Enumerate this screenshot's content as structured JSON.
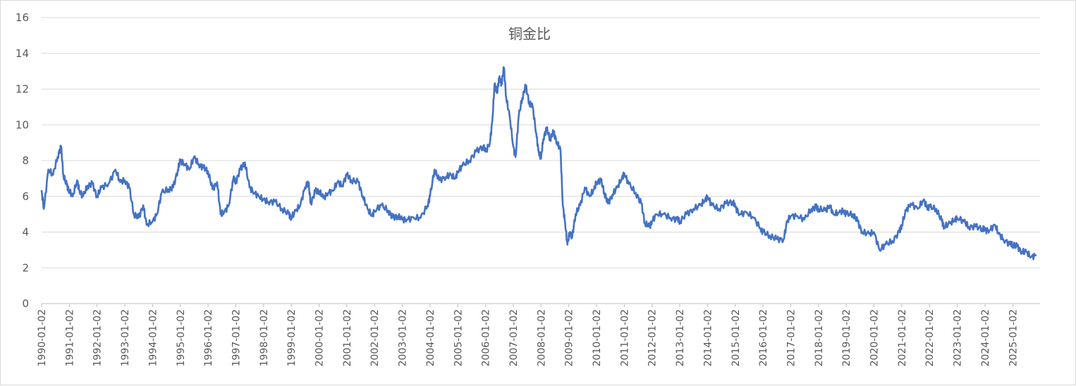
{
  "chart_data": {
    "type": "line",
    "title": "铜金比",
    "xlabel": "",
    "ylabel": "",
    "ylim": [
      0,
      16
    ],
    "yticks": [
      "0",
      "2",
      "4",
      "6",
      "8",
      "10",
      "12",
      "14",
      "16"
    ],
    "xticks": [
      "1990-01-02",
      "1991-01-02",
      "1992-01-02",
      "1993-01-02",
      "1994-01-02",
      "1995-01-02",
      "1996-01-02",
      "1997-01-02",
      "1998-01-02",
      "1999-01-02",
      "2000-01-02",
      "2001-01-02",
      "2002-01-02",
      "2003-01-02",
      "2004-01-02",
      "2005-01-02",
      "2006-01-02",
      "2007-01-02",
      "2008-01-02",
      "2009-01-02",
      "2010-01-02",
      "2011-01-02",
      "2012-01-02",
      "2013-01-02",
      "2014-01-02",
      "2015-01-02",
      "2016-01-02",
      "2017-01-02",
      "2018-01-02",
      "2019-01-02",
      "2020-01-02",
      "2021-01-02",
      "2022-01-02",
      "2023-01-02",
      "2024-01-02",
      "2025-01-02"
    ],
    "grid": true,
    "legend": "none",
    "series": [
      {
        "color": "#4472c4",
        "points": [
          [
            "1990-01-02",
            6.3
          ],
          [
            "1990-02-01",
            5.3
          ],
          [
            "1990-04-01",
            7.5
          ],
          [
            "1990-06-01",
            7.2
          ],
          [
            "1990-08-01",
            8.2
          ],
          [
            "1990-09-15",
            8.8
          ],
          [
            "1990-10-15",
            7.2
          ],
          [
            "1990-12-01",
            6.6
          ],
          [
            "1991-01-02",
            6.3
          ],
          [
            "1991-02-15",
            6.0
          ],
          [
            "1991-04-15",
            6.9
          ],
          [
            "1991-05-15",
            6.3
          ],
          [
            "1991-07-01",
            6.0
          ],
          [
            "1991-09-01",
            6.6
          ],
          [
            "1991-11-01",
            6.7
          ],
          [
            "1992-01-02",
            6.0
          ],
          [
            "1992-03-01",
            6.5
          ],
          [
            "1992-06-01",
            6.7
          ],
          [
            "1992-09-01",
            7.5
          ],
          [
            "1992-11-01",
            6.8
          ],
          [
            "1993-01-02",
            6.9
          ],
          [
            "1993-03-01",
            6.5
          ],
          [
            "1993-05-01",
            5.0
          ],
          [
            "1993-07-01",
            4.8
          ],
          [
            "1993-09-01",
            5.5
          ],
          [
            "1993-10-15",
            4.4
          ],
          [
            "1994-01-02",
            4.6
          ],
          [
            "1994-03-01",
            5.0
          ],
          [
            "1994-05-01",
            6.2
          ],
          [
            "1994-08-01",
            6.4
          ],
          [
            "1994-10-01",
            6.5
          ],
          [
            "1994-12-01",
            7.5
          ],
          [
            "1995-01-02",
            8.0
          ],
          [
            "1995-03-01",
            7.8
          ],
          [
            "1995-05-01",
            7.5
          ],
          [
            "1995-07-01",
            8.2
          ],
          [
            "1995-09-01",
            7.8
          ],
          [
            "1995-11-01",
            7.6
          ],
          [
            "1996-01-02",
            7.4
          ],
          [
            "1996-03-01",
            6.4
          ],
          [
            "1996-05-01",
            6.8
          ],
          [
            "1996-06-15",
            5.0
          ],
          [
            "1996-08-01",
            5.1
          ],
          [
            "1996-10-01",
            5.5
          ],
          [
            "1996-12-01",
            7.0
          ],
          [
            "1997-01-02",
            6.8
          ],
          [
            "1997-03-01",
            7.5
          ],
          [
            "1997-05-01",
            7.9
          ],
          [
            "1997-07-01",
            6.5
          ],
          [
            "1997-09-01",
            6.2
          ],
          [
            "1997-11-01",
            6.0
          ],
          [
            "1998-01-02",
            5.8
          ],
          [
            "1998-03-01",
            5.7
          ],
          [
            "1998-06-01",
            5.7
          ],
          [
            "1998-09-01",
            5.3
          ],
          [
            "1998-12-01",
            5.0
          ],
          [
            "1999-01-02",
            4.8
          ],
          [
            "1999-03-01",
            5.2
          ],
          [
            "1999-05-01",
            5.5
          ],
          [
            "1999-07-01",
            6.5
          ],
          [
            "1999-08-15",
            6.8
          ],
          [
            "1999-09-15",
            5.6
          ],
          [
            "1999-11-15",
            6.3
          ],
          [
            "2000-01-02",
            6.3
          ],
          [
            "2000-03-01",
            5.9
          ],
          [
            "2000-05-01",
            6.2
          ],
          [
            "2000-07-01",
            6.3
          ],
          [
            "2000-09-01",
            6.8
          ],
          [
            "2000-11-01",
            6.6
          ],
          [
            "2001-01-02",
            7.2
          ],
          [
            "2001-03-01",
            6.9
          ],
          [
            "2001-06-01",
            6.8
          ],
          [
            "2001-08-01",
            6.0
          ],
          [
            "2001-10-01",
            5.3
          ],
          [
            "2001-12-01",
            4.9
          ],
          [
            "2002-01-02",
            5.2
          ],
          [
            "2002-04-01",
            5.5
          ],
          [
            "2002-07-01",
            5.2
          ],
          [
            "2002-09-01",
            4.8
          ],
          [
            "2002-11-01",
            4.9
          ],
          [
            "2003-01-02",
            4.7
          ],
          [
            "2003-03-01",
            4.7
          ],
          [
            "2003-06-01",
            4.8
          ],
          [
            "2003-09-01",
            4.8
          ],
          [
            "2003-12-01",
            5.5
          ],
          [
            "2004-01-02",
            6.0
          ],
          [
            "2004-03-01",
            7.5
          ],
          [
            "2004-05-01",
            6.9
          ],
          [
            "2004-08-01",
            7.1
          ],
          [
            "2004-10-01",
            7.2
          ],
          [
            "2004-12-01",
            7.0
          ],
          [
            "2005-01-02",
            7.4
          ],
          [
            "2005-03-01",
            7.7
          ],
          [
            "2005-06-01",
            8.0
          ],
          [
            "2005-09-01",
            8.5
          ],
          [
            "2005-12-01",
            8.8
          ],
          [
            "2006-01-02",
            8.5
          ],
          [
            "2006-03-01",
            9.0
          ],
          [
            "2006-04-01",
            10.2
          ],
          [
            "2006-05-01",
            12.3
          ],
          [
            "2006-06-01",
            11.8
          ],
          [
            "2006-07-01",
            12.6
          ],
          [
            "2006-08-01",
            12.3
          ],
          [
            "2006-09-01",
            13.2
          ],
          [
            "2006-10-01",
            11.5
          ],
          [
            "2006-11-15",
            10.5
          ],
          [
            "2007-01-02",
            8.8
          ],
          [
            "2007-02-01",
            8.2
          ],
          [
            "2007-03-15",
            10.5
          ],
          [
            "2007-05-01",
            11.5
          ],
          [
            "2007-06-15",
            12.2
          ],
          [
            "2007-08-01",
            11.2
          ],
          [
            "2007-09-15",
            11.0
          ],
          [
            "2007-11-01",
            9.5
          ],
          [
            "2007-12-01",
            8.5
          ],
          [
            "2008-01-02",
            8.1
          ],
          [
            "2008-02-01",
            9.2
          ],
          [
            "2008-03-15",
            9.8
          ],
          [
            "2008-05-01",
            9.2
          ],
          [
            "2008-06-15",
            9.6
          ],
          [
            "2008-08-01",
            9.0
          ],
          [
            "2008-09-15",
            8.6
          ],
          [
            "2008-10-15",
            5.5
          ],
          [
            "2008-11-15",
            4.5
          ],
          [
            "2008-12-15",
            3.3
          ],
          [
            "2009-01-15",
            4.0
          ],
          [
            "2009-02-15",
            3.7
          ],
          [
            "2009-04-01",
            5.0
          ],
          [
            "2009-06-01",
            5.5
          ],
          [
            "2009-08-01",
            6.5
          ],
          [
            "2009-10-01",
            6.0
          ],
          [
            "2009-12-01",
            6.4
          ],
          [
            "2010-01-02",
            6.8
          ],
          [
            "2010-03-01",
            6.9
          ],
          [
            "2010-04-15",
            6.2
          ],
          [
            "2010-06-01",
            5.6
          ],
          [
            "2010-08-01",
            6.1
          ],
          [
            "2010-10-01",
            6.5
          ],
          [
            "2010-12-01",
            7.0
          ],
          [
            "2011-01-02",
            7.3
          ],
          [
            "2011-03-01",
            6.7
          ],
          [
            "2011-06-01",
            6.2
          ],
          [
            "2011-08-15",
            5.6
          ],
          [
            "2011-10-01",
            4.5
          ],
          [
            "2011-12-01",
            4.3
          ],
          [
            "2012-01-02",
            4.6
          ],
          [
            "2012-03-01",
            5.0
          ],
          [
            "2012-06-01",
            5.0
          ],
          [
            "2012-09-01",
            4.8
          ],
          [
            "2012-12-01",
            4.7
          ],
          [
            "2013-01-02",
            4.6
          ],
          [
            "2013-04-01",
            5.0
          ],
          [
            "2013-07-01",
            5.3
          ],
          [
            "2013-10-01",
            5.5
          ],
          [
            "2013-12-01",
            5.8
          ],
          [
            "2014-01-02",
            6.0
          ],
          [
            "2014-03-01",
            5.5
          ],
          [
            "2014-06-01",
            5.3
          ],
          [
            "2014-09-01",
            5.6
          ],
          [
            "2014-12-01",
            5.7
          ],
          [
            "2015-01-02",
            5.4
          ],
          [
            "2015-03-01",
            5.0
          ],
          [
            "2015-06-01",
            5.1
          ],
          [
            "2015-09-01",
            4.8
          ],
          [
            "2015-12-01",
            4.2
          ],
          [
            "2016-01-02",
            4.0
          ],
          [
            "2016-04-01",
            3.8
          ],
          [
            "2016-07-01",
            3.6
          ],
          [
            "2016-10-01",
            3.6
          ],
          [
            "2016-11-15",
            4.6
          ],
          [
            "2017-01-02",
            4.9
          ],
          [
            "2017-04-01",
            4.9
          ],
          [
            "2017-07-01",
            4.7
          ],
          [
            "2017-10-01",
            5.3
          ],
          [
            "2017-12-01",
            5.4
          ],
          [
            "2018-01-02",
            5.3
          ],
          [
            "2018-04-01",
            5.2
          ],
          [
            "2018-06-01",
            5.5
          ],
          [
            "2018-07-15",
            5.0
          ],
          [
            "2018-10-01",
            5.1
          ],
          [
            "2018-12-01",
            5.2
          ],
          [
            "2019-01-02",
            5.0
          ],
          [
            "2019-04-01",
            5.0
          ],
          [
            "2019-06-01",
            4.6
          ],
          [
            "2019-08-01",
            4.0
          ],
          [
            "2019-11-01",
            3.9
          ],
          [
            "2020-01-02",
            4.0
          ],
          [
            "2020-03-15",
            3.0
          ],
          [
            "2020-06-01",
            3.3
          ],
          [
            "2020-09-01",
            3.5
          ],
          [
            "2020-12-01",
            4.0
          ],
          [
            "2021-01-02",
            4.4
          ],
          [
            "2021-03-01",
            5.2
          ],
          [
            "2021-05-01",
            5.6
          ],
          [
            "2021-08-01",
            5.3
          ],
          [
            "2021-10-15",
            5.8
          ],
          [
            "2021-12-01",
            5.4
          ],
          [
            "2022-01-02",
            5.4
          ],
          [
            "2022-04-01",
            5.3
          ],
          [
            "2022-06-15",
            4.6
          ],
          [
            "2022-07-15",
            4.3
          ],
          [
            "2022-10-01",
            4.5
          ],
          [
            "2022-12-01",
            4.7
          ],
          [
            "2023-01-02",
            4.8
          ],
          [
            "2023-04-01",
            4.6
          ],
          [
            "2023-06-01",
            4.3
          ],
          [
            "2023-09-01",
            4.3
          ],
          [
            "2023-12-01",
            4.2
          ],
          [
            "2024-01-02",
            4.1
          ],
          [
            "2024-03-01",
            4.1
          ],
          [
            "2024-05-15",
            4.4
          ],
          [
            "2024-07-01",
            3.9
          ],
          [
            "2024-09-01",
            3.6
          ],
          [
            "2024-12-01",
            3.3
          ],
          [
            "2025-01-02",
            3.3
          ],
          [
            "2025-03-01",
            3.2
          ],
          [
            "2025-05-01",
            2.9
          ],
          [
            "2025-07-01",
            2.9
          ],
          [
            "2025-09-01",
            2.6
          ],
          [
            "2025-11-01",
            2.7
          ]
        ]
      }
    ]
  }
}
